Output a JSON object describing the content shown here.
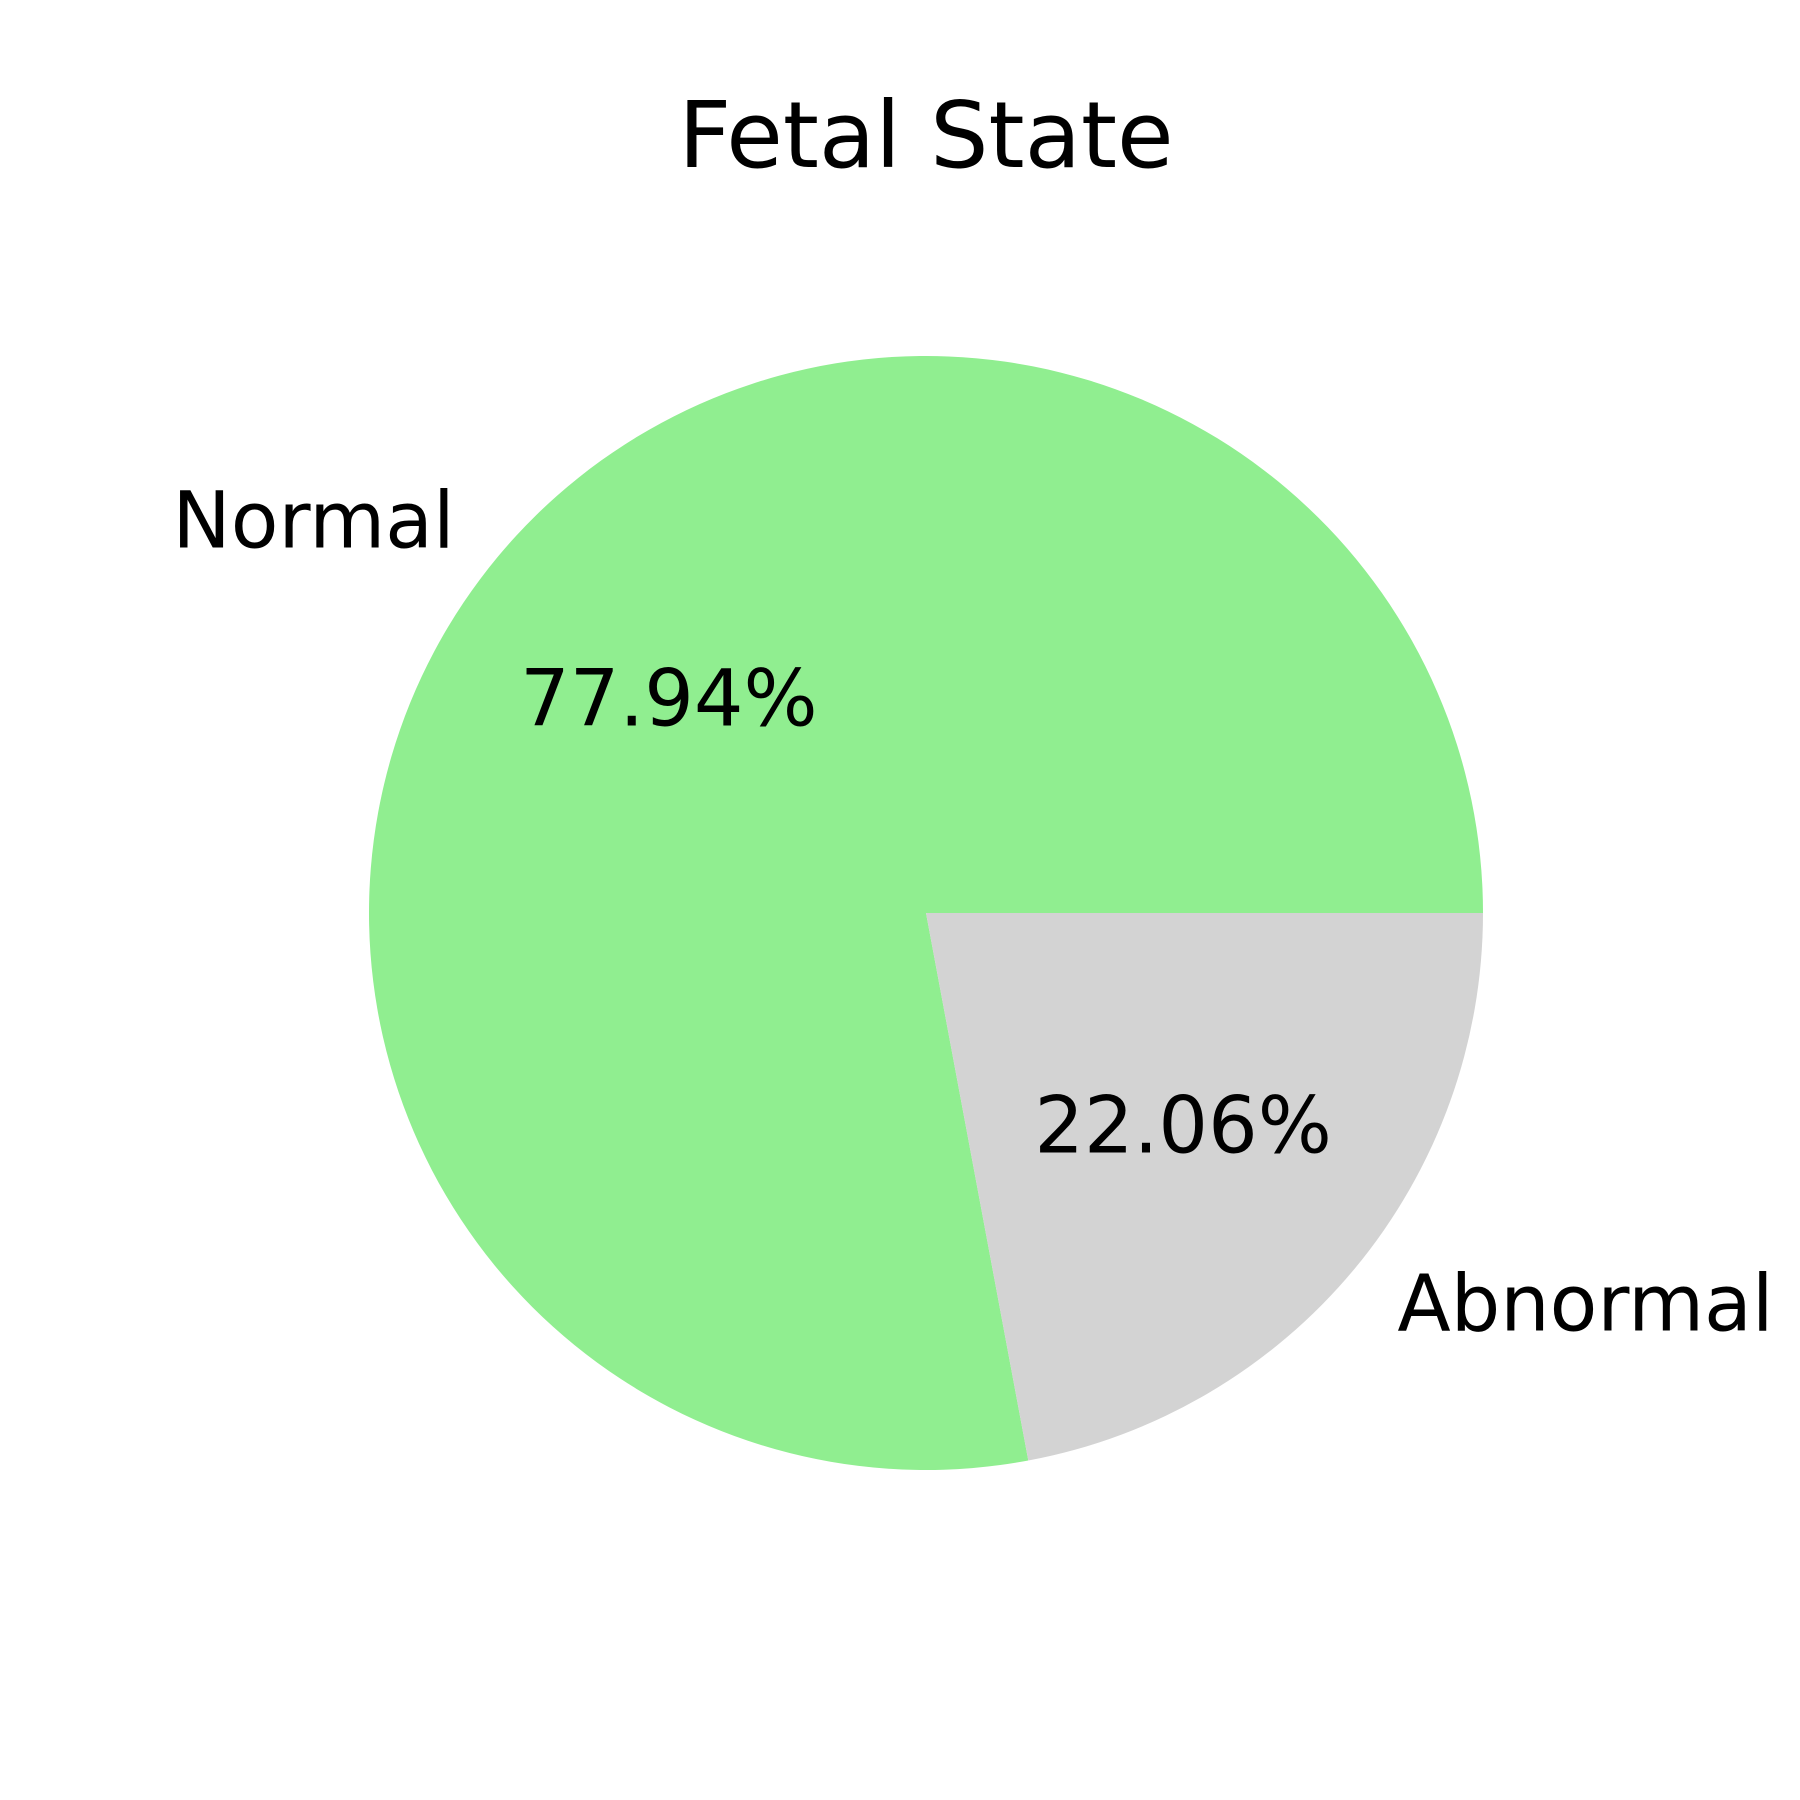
{
  "chart_data": {
    "type": "pie",
    "title": "Fetal State",
    "categories": [
      "Normal",
      "Abnormal"
    ],
    "values": [
      77.94,
      22.06
    ],
    "data_labels": [
      "77.94%",
      "22.06%"
    ],
    "colors": [
      "#90ee90",
      "#d3d3d3"
    ],
    "start_angle_deg": 0,
    "direction": "counterclockwise",
    "legend": "none"
  }
}
